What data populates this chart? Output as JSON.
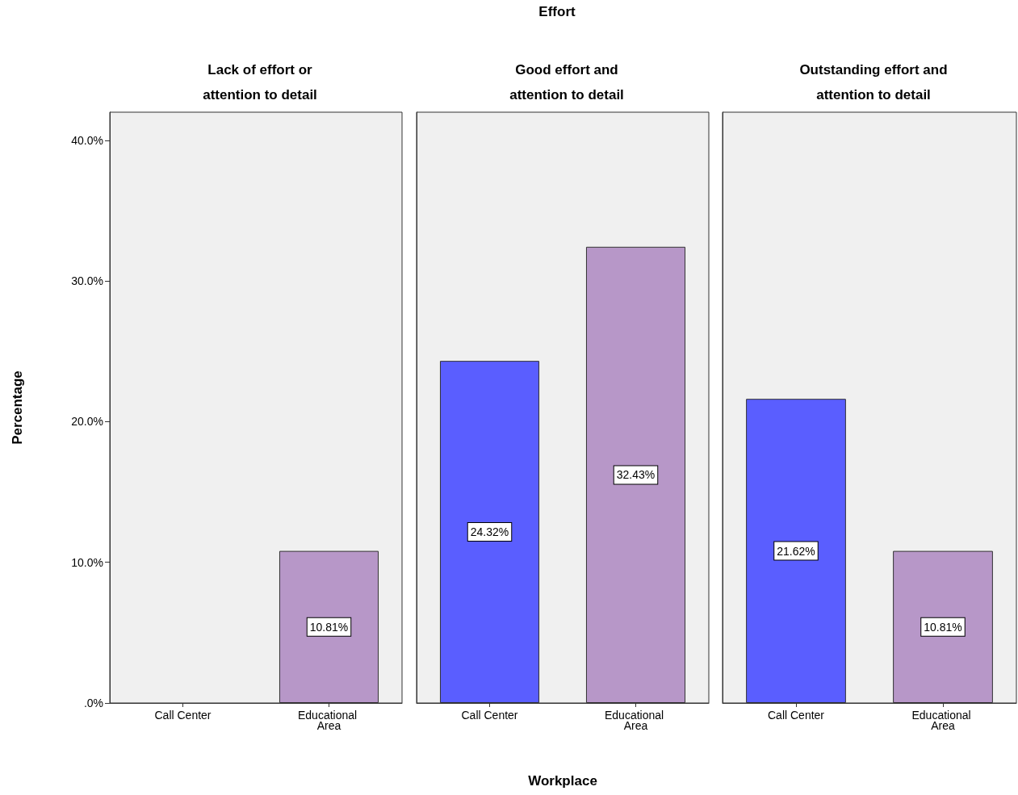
{
  "chart_data": [
    {
      "type": "bar",
      "title": "Lack of effort or attention to detail",
      "ylabel": "Percentage",
      "categories": [
        "Call Center",
        "Educational Area"
      ],
      "values": [
        0,
        10.81
      ],
      "colors": [
        "#5a5eff",
        "#b797c8"
      ],
      "value_labels": [
        null,
        "10.81%"
      ],
      "ylim": [
        0,
        42
      ],
      "yticks": [
        {
          "value": 0,
          "label": ".0%"
        },
        {
          "value": 10,
          "label": "10.0%"
        },
        {
          "value": 20,
          "label": "20.0%"
        },
        {
          "value": 30,
          "label": "30.0%"
        },
        {
          "value": 40,
          "label": "40.0%"
        }
      ],
      "grid": false
    },
    {
      "type": "bar",
      "title": "Good effort and attention to detail",
      "xlabel": "Workplace",
      "annotations": [
        "Effort"
      ],
      "categories": [
        "Call Center",
        "Educational Area"
      ],
      "values": [
        24.32,
        32.43
      ],
      "colors": [
        "#5a5eff",
        "#b797c8"
      ],
      "value_labels": [
        "24.32%",
        "32.43%"
      ],
      "ylim": [
        0,
        42
      ],
      "tick_labels": "x",
      "grid": false
    },
    {
      "type": "bar",
      "title": "Outstanding effort and attention to detail",
      "categories": [
        "Call Center",
        "Educational Area"
      ],
      "values": [
        21.62,
        10.81
      ],
      "colors": [
        "#5a5eff",
        "#b797c8"
      ],
      "value_labels": [
        "21.62%",
        "10.81%"
      ],
      "ylim": [
        0,
        42
      ],
      "tick_labels": "x",
      "grid": false
    }
  ]
}
